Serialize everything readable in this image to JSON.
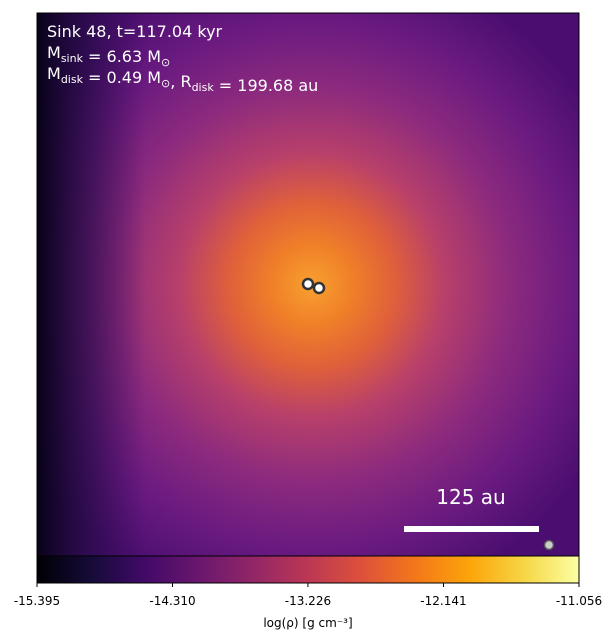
{
  "chart_data": {
    "type": "image",
    "annotations": [
      [
        {
          "text": "Sink 48, t=117.04 kyr"
        }
      ],
      [
        {
          "text": "M"
        },
        {
          "sub": "sink"
        },
        {
          "text": " = 6.63 M"
        },
        {
          "sub": "⊙"
        }
      ],
      [
        {
          "text": "M"
        },
        {
          "sub": "disk"
        },
        {
          "text": " = 0.49 M"
        },
        {
          "sub": "⊙"
        },
        {
          "text": ", R"
        },
        {
          "sub": "disk"
        },
        {
          "text": " = 199.68 au"
        }
      ]
    ],
    "scale_bar": "125 au",
    "colormap": "inferno",
    "colorbar": {
      "label": "log(ρ) [g cm⁻³]",
      "clim": [
        -15.395,
        -11.056
      ],
      "ticks": [
        {
          "value": -15.395,
          "label": "-15.395"
        },
        {
          "value": -14.31,
          "label": "-14.310"
        },
        {
          "value": -13.226,
          "label": "-13.226"
        },
        {
          "value": -12.141,
          "label": "-12.141"
        },
        {
          "value": -11.056,
          "label": "-11.056"
        }
      ]
    }
  }
}
